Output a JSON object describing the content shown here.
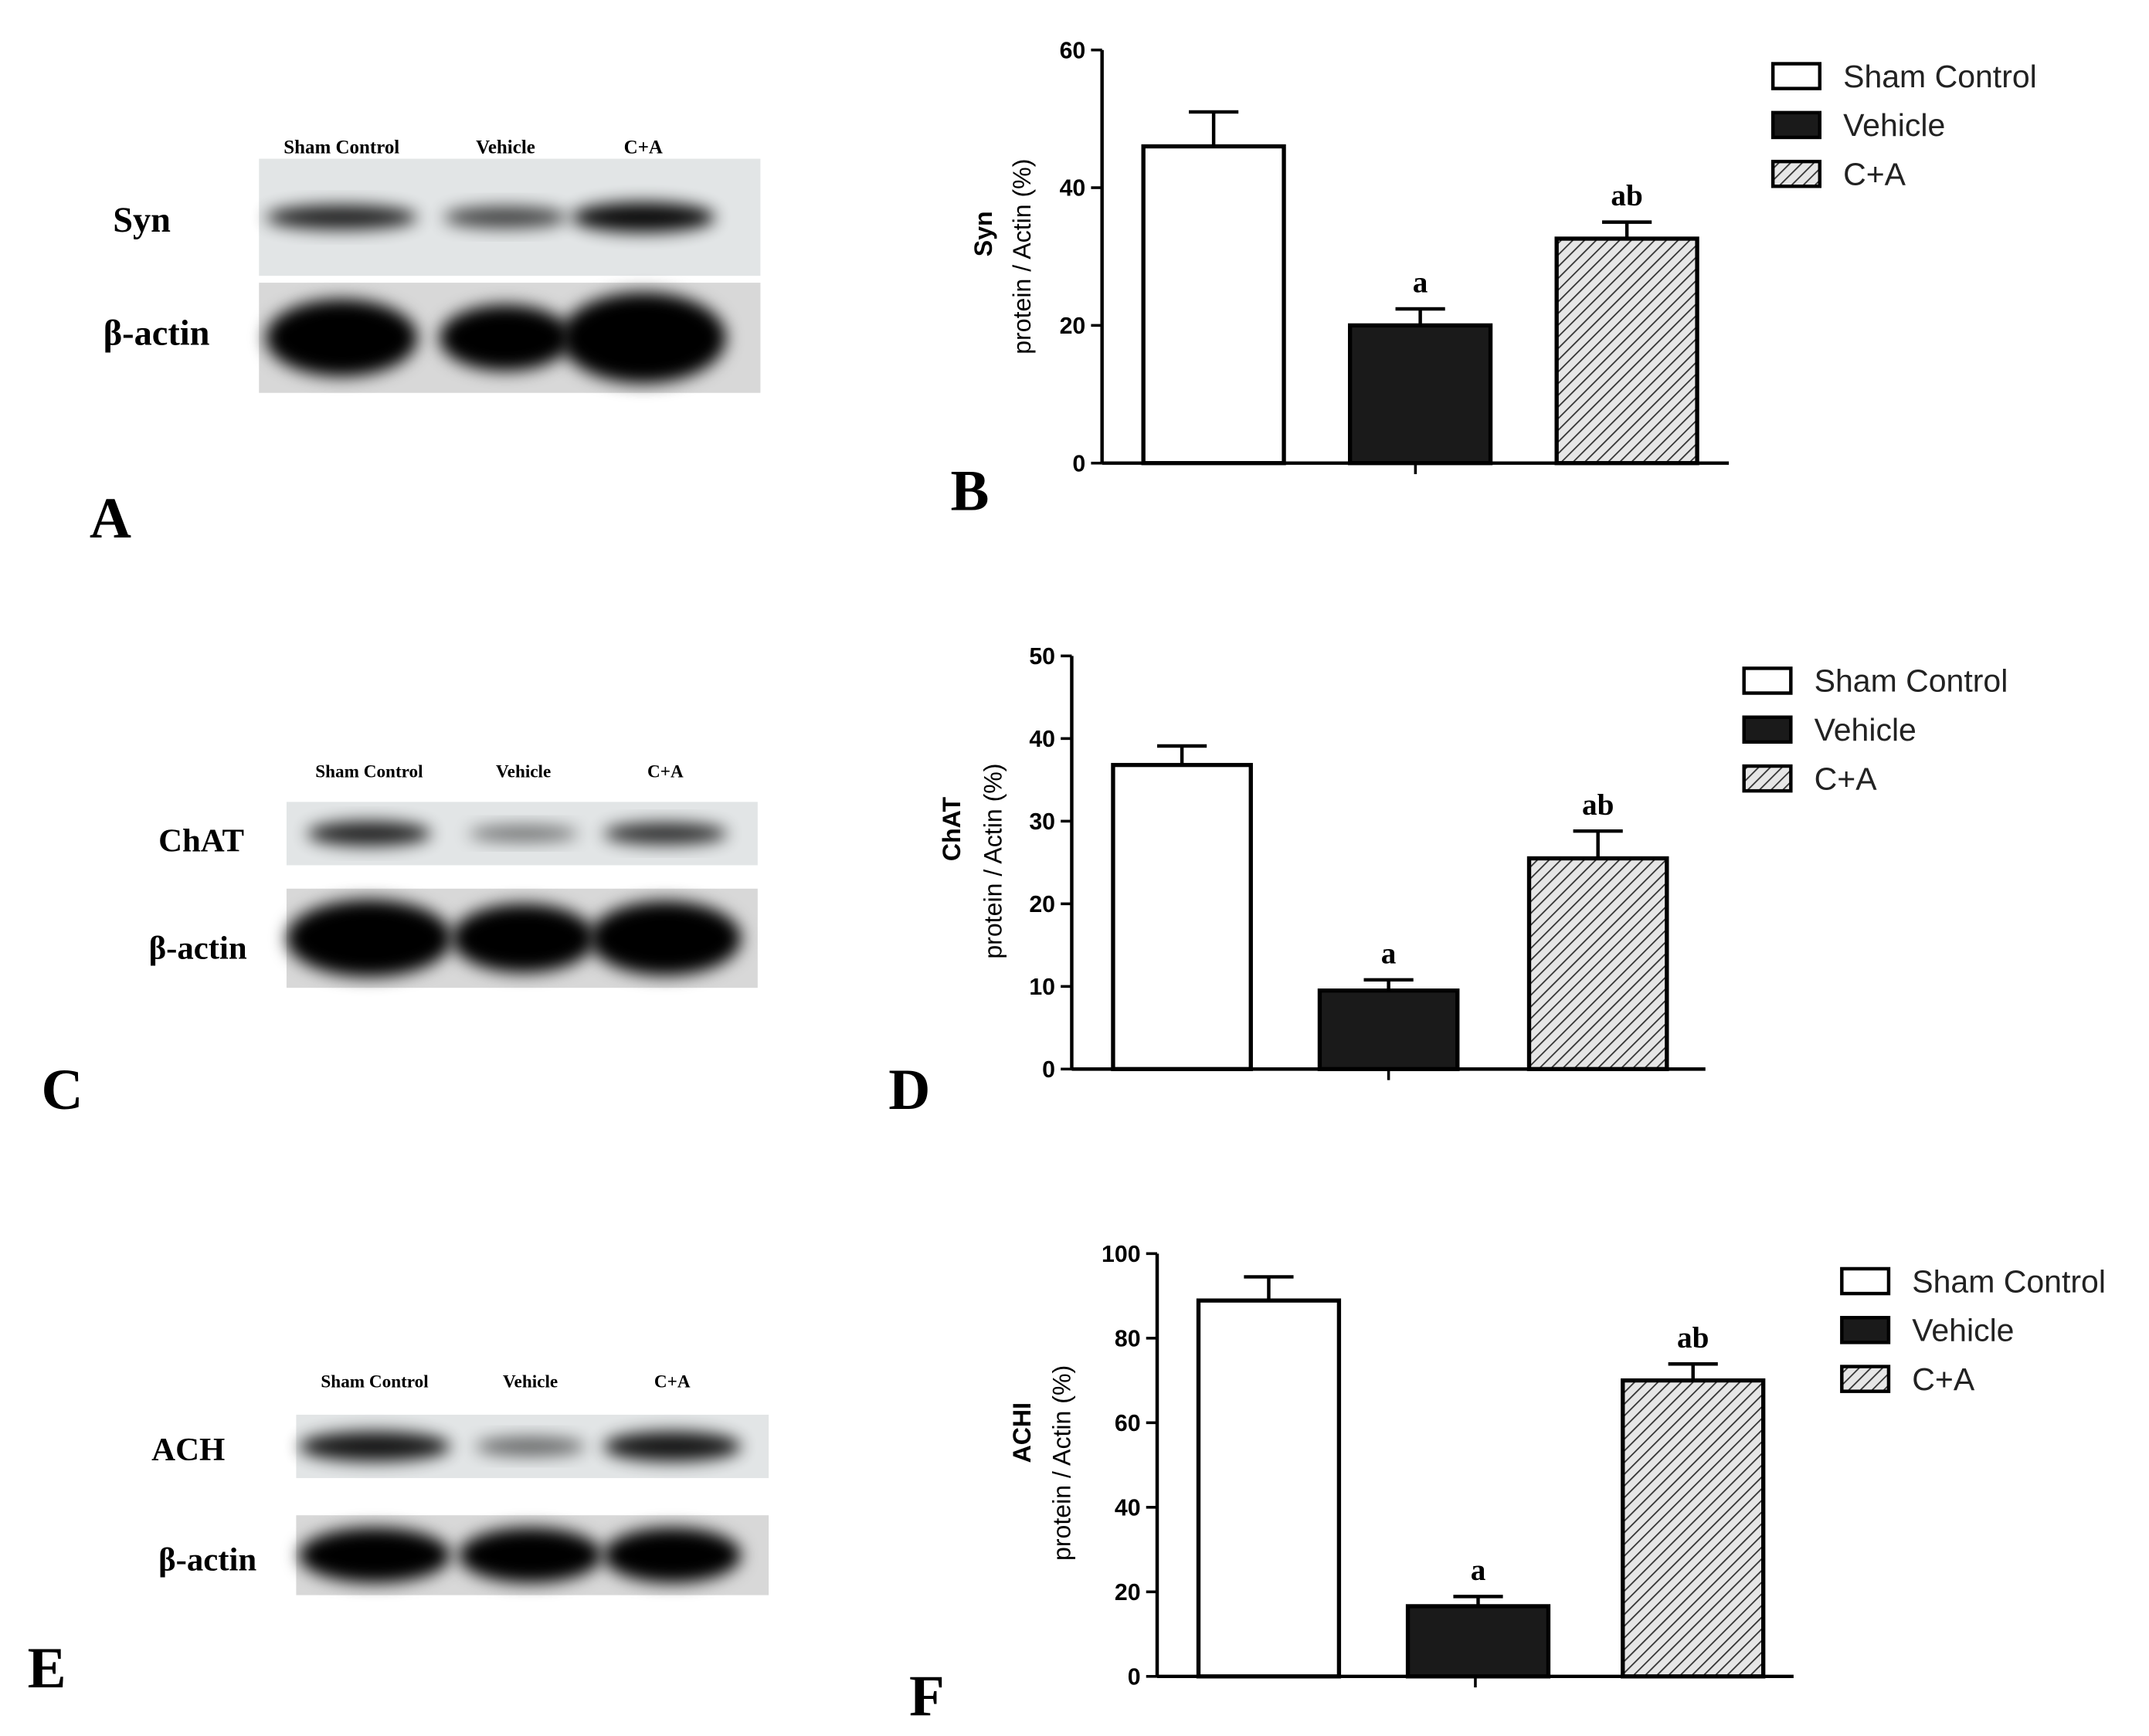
{
  "chart_data": [
    {
      "type": "bar",
      "panel": "B",
      "ylabel": [
        "Syn",
        "protein / Actin (%)"
      ],
      "categories": [
        "Sham Control",
        "Vehicle",
        "C+A"
      ],
      "values": [
        46,
        20,
        32.6
      ],
      "errors": [
        5,
        2.4,
        2.4
      ],
      "annotations": [
        null,
        "a",
        "ab"
      ],
      "colors": [
        "#ffffff",
        "#1a1a1a",
        "#d9d9d9"
      ],
      "hatch": [
        false,
        false,
        true
      ],
      "ylim": [
        0,
        60
      ],
      "yticks": [
        0,
        20,
        40,
        60
      ],
      "legend": "top-right"
    },
    {
      "type": "bar",
      "panel": "D",
      "ylabel": [
        "ChAT",
        "protein / Actin (%)"
      ],
      "categories": [
        "Sham Control",
        "Vehicle",
        "C+A"
      ],
      "values": [
        36.8,
        9.5,
        25.5
      ],
      "errors": [
        2.3,
        1.3,
        3.3
      ],
      "annotations": [
        null,
        "a",
        "ab"
      ],
      "colors": [
        "#ffffff",
        "#1a1a1a",
        "#d9d9d9"
      ],
      "hatch": [
        false,
        false,
        true
      ],
      "ylim": [
        0,
        50
      ],
      "yticks": [
        0,
        10,
        20,
        30,
        40,
        50
      ],
      "legend": "top-right"
    },
    {
      "type": "bar",
      "panel": "F",
      "ylabel": [
        "ACHI",
        "protein / Actin (%)"
      ],
      "categories": [
        "Sham Control",
        "Vehicle",
        "C+A"
      ],
      "values": [
        88.9,
        16.6,
        70
      ],
      "errors": [
        5.6,
        2.3,
        3.9
      ],
      "annotations": [
        null,
        "a",
        "ab"
      ],
      "colors": [
        "#ffffff",
        "#1a1a1a",
        "#d9d9d9"
      ],
      "hatch": [
        false,
        false,
        true
      ],
      "ylim": [
        0,
        100
      ],
      "yticks": [
        0,
        20,
        40,
        60,
        80,
        100
      ],
      "legend": "top-right"
    }
  ],
  "blots": [
    {
      "panel": "A",
      "lanes": [
        "Sham Control",
        "Vehicle",
        "C+A"
      ],
      "rows": [
        "Syn",
        "β-actin"
      ]
    },
    {
      "panel": "C",
      "lanes": [
        "Sham Control",
        "Vehicle",
        "C+A"
      ],
      "rows": [
        "ChAT",
        "β-actin"
      ]
    },
    {
      "panel": "E",
      "lanes": [
        "Sham Control",
        "Vehicle",
        "C+A"
      ],
      "rows": [
        "ACH",
        "β-actin"
      ]
    }
  ]
}
